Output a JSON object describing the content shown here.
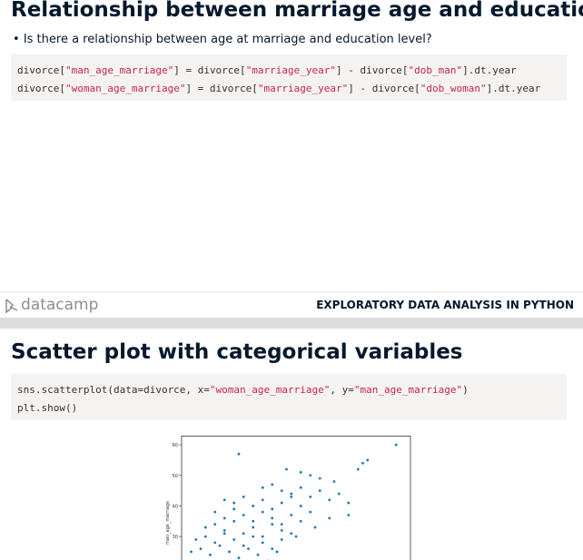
{
  "slide1": {
    "title": "Relationship between marriage age and education",
    "bullet": "Is there a relationship between age at marriage and education level?",
    "code": [
      [
        "divorce[",
        "\"man_age_marriage\"",
        "] = divorce[",
        "\"marriage_year\"",
        "] - divorce[",
        "\"dob_man\"",
        "].dt.year"
      ],
      [
        "divorce[",
        "\"woman_age_marriage\"",
        "] = divorce[",
        "\"marriage_year\"",
        "] - divorce[",
        "\"dob_woman\"",
        "].dt.year"
      ]
    ]
  },
  "footer": {
    "logo": "datacamp",
    "course": "EXPLORATORY DATA ANALYSIS IN PYTHON"
  },
  "slide2": {
    "title": "Scatter plot with categorical variables",
    "code": [
      [
        "sns.scatterplot(data=divorce, x=",
        "\"woman_age_marriage\"",
        ", y=",
        "\"man_age_marriage\"",
        ")"
      ],
      [
        "plt.show()"
      ]
    ]
  },
  "chart_data": {
    "type": "scatter",
    "y_label": "man_age_marriage",
    "x": [
      58,
      52,
      51,
      50,
      25,
      35,
      38,
      40,
      42,
      45,
      30,
      32,
      34,
      36,
      38,
      40,
      42,
      44,
      46,
      48,
      22,
      24,
      26,
      28,
      30,
      32,
      34,
      36,
      38,
      40,
      20,
      22,
      24,
      26,
      28,
      30,
      32,
      34,
      36,
      38,
      18,
      20,
      22,
      24,
      26,
      28,
      30,
      32,
      34,
      36,
      16,
      18,
      20,
      22,
      24,
      26,
      28,
      30,
      32,
      34,
      15,
      17,
      19,
      21,
      23,
      25,
      27,
      29,
      31,
      33,
      44,
      48,
      41,
      37
    ],
    "series": [
      {
        "color": "#1f77b4",
        "values": [
          60,
          55,
          54,
          52,
          57,
          52,
          51,
          50,
          49,
          48,
          46,
          47,
          45,
          44,
          46,
          43,
          45,
          42,
          44,
          41,
          42,
          41,
          43,
          40,
          42,
          39,
          41,
          43,
          40,
          38,
          38,
          36,
          39,
          37,
          35,
          38,
          36,
          34,
          37,
          35,
          33,
          34,
          32,
          35,
          31,
          33,
          30,
          34,
          32,
          31,
          29,
          30,
          28,
          31,
          29,
          27,
          30,
          28,
          26,
          29,
          25,
          26,
          24,
          27,
          25,
          23,
          26,
          24,
          22,
          25,
          36,
          37,
          33,
          30
        ]
      }
    ],
    "xlim": [
      13,
      61
    ],
    "ylim": [
      14,
      63
    ],
    "yticks": [
      30,
      40,
      50,
      60
    ]
  }
}
